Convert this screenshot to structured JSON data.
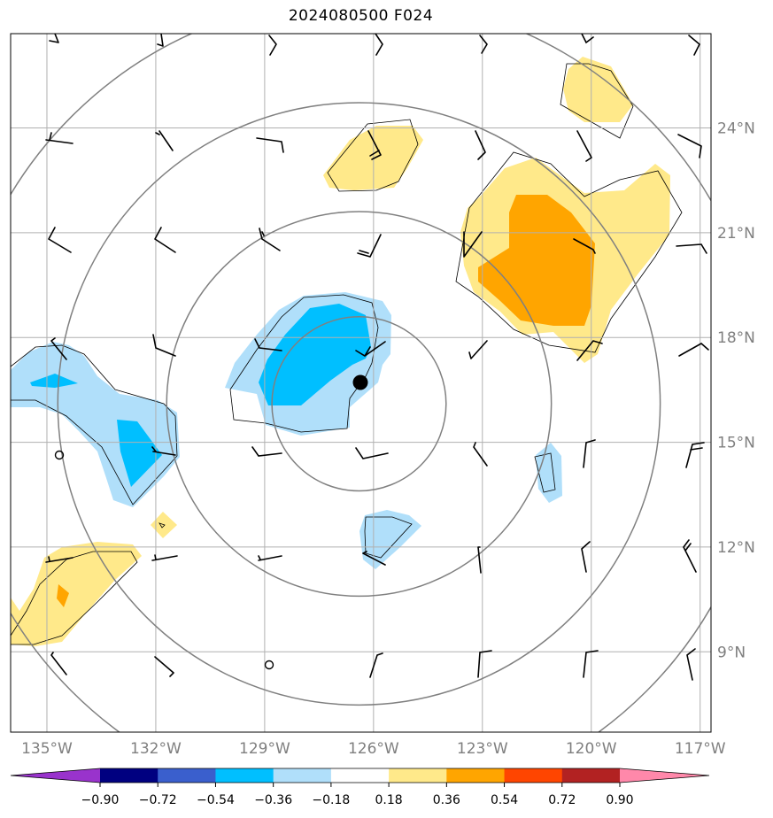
{
  "title": "2024080500 F024",
  "map": {
    "lon_range": [
      -136,
      -116.7
    ],
    "lat_range": [
      6.7,
      26.7
    ],
    "lon_ticks": [
      {
        "lon": -135,
        "label": "135°W"
      },
      {
        "lon": -132,
        "label": "132°W"
      },
      {
        "lon": -129,
        "label": "129°W"
      },
      {
        "lon": -126,
        "label": "126°W"
      },
      {
        "lon": -123,
        "label": "123°W"
      },
      {
        "lon": -120,
        "label": "120°W"
      },
      {
        "lon": -117,
        "label": "117°W"
      }
    ],
    "lat_ticks": [
      {
        "lat": 24,
        "label": "24°N"
      },
      {
        "lat": 21,
        "label": "21°N"
      },
      {
        "lat": 18,
        "label": "18°N"
      },
      {
        "lat": 15,
        "label": "15°N"
      },
      {
        "lat": 12,
        "label": "12°N"
      },
      {
        "lat": 9,
        "label": "9°N"
      }
    ],
    "grid": true,
    "center": {
      "lon": -126.4,
      "lat": 16.1
    },
    "range_rings_deg": [
      2.4,
      5.3,
      8.3,
      11.2
    ]
  },
  "colors": {
    "neg_090": "#9933cc",
    "neg_072": "#000080",
    "neg_054": "#3a5fcd",
    "neg_036": "#00bfff",
    "neg_018": "#b0dffa",
    "neutral": "#ffffff",
    "pos_018": "#ffe98a",
    "pos_036": "#ffa500",
    "pos_054": "#ff4500",
    "pos_072": "#b22222",
    "pos_090": "#ff88aa"
  },
  "colorbar": {
    "ticks": [
      "−0.90",
      "−0.72",
      "−0.54",
      "−0.36",
      "−0.18",
      "0.18",
      "0.36",
      "0.54",
      "0.72",
      "0.90"
    ],
    "extend": "both"
  }
}
